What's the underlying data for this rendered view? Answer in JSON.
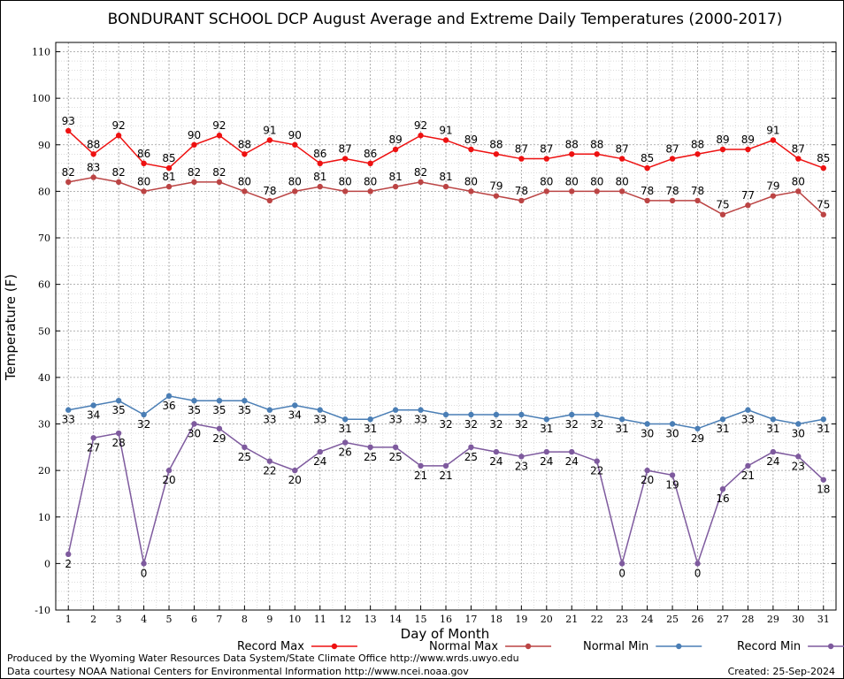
{
  "chart_data": {
    "type": "line",
    "title": "BONDURANT SCHOOL DCP August Average and Extreme Daily Temperatures (2000-2017)",
    "xlabel": "Day of Month",
    "ylabel": "Temperature (F)",
    "x": [
      1,
      2,
      3,
      4,
      5,
      6,
      7,
      8,
      9,
      10,
      11,
      12,
      13,
      14,
      15,
      16,
      17,
      18,
      19,
      20,
      21,
      22,
      23,
      24,
      25,
      26,
      27,
      28,
      29,
      30,
      31
    ],
    "xlim": [
      0.5,
      31.5
    ],
    "ylim": [
      -10,
      112
    ],
    "yticks": [
      -10,
      0,
      10,
      20,
      30,
      40,
      50,
      60,
      70,
      80,
      90,
      100,
      110
    ],
    "grid": true,
    "legend_position": "bottom",
    "series": [
      {
        "name": "Record Max",
        "color": "#ee1111",
        "values": [
          93,
          88,
          92,
          86,
          85,
          90,
          92,
          88,
          91,
          90,
          86,
          87,
          86,
          89,
          92,
          91,
          89,
          88,
          87,
          87,
          88,
          88,
          87,
          85,
          87,
          88,
          89,
          89,
          91,
          87,
          85
        ]
      },
      {
        "name": "Normal Max",
        "color": "#bb4444",
        "values": [
          82,
          83,
          82,
          80,
          81,
          82,
          82,
          80,
          78,
          80,
          81,
          80,
          80,
          81,
          82,
          81,
          80,
          79,
          78,
          80,
          80,
          80,
          80,
          78,
          78,
          78,
          75,
          77,
          79,
          80,
          75
        ]
      },
      {
        "name": "Normal Min",
        "color": "#4a7eb5",
        "values": [
          33,
          34,
          35,
          32,
          36,
          35,
          35,
          35,
          33,
          34,
          33,
          31,
          31,
          33,
          33,
          32,
          32,
          32,
          32,
          31,
          32,
          32,
          31,
          30,
          30,
          29,
          31,
          33,
          31,
          30,
          31
        ]
      },
      {
        "name": "Record Min",
        "color": "#7e5a9e",
        "values": [
          2,
          27,
          28,
          0,
          20,
          30,
          29,
          25,
          22,
          20,
          24,
          26,
          25,
          25,
          21,
          21,
          25,
          24,
          23,
          24,
          24,
          22,
          0,
          20,
          19,
          0,
          16,
          21,
          24,
          23,
          18
        ]
      }
    ]
  },
  "footer": {
    "produced_by": "Produced by the Wyoming Water Resources Data System/State Climate Office http://www.wrds.uwyo.edu",
    "courtesy": "Data courtesy NOAA National Centers for Environmental Information http://www.ncei.noaa.gov",
    "created": "Created:  25-Sep-2024"
  }
}
